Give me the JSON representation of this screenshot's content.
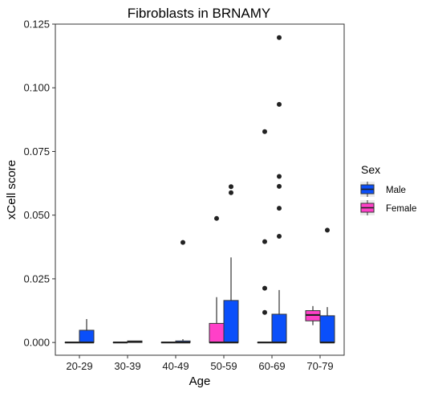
{
  "chart_data": {
    "type": "boxplot",
    "title": "Fibroblasts in BRNAMY",
    "xlabel": "Age",
    "ylabel": "xCell score",
    "ylim": [
      -0.005,
      0.125
    ],
    "y_ticks": [
      "0.000",
      "0.025",
      "0.050",
      "0.075",
      "0.100",
      "0.125"
    ],
    "y_tick_values": [
      0,
      0.025,
      0.05,
      0.075,
      0.1,
      0.125
    ],
    "categories": [
      "20-29",
      "30-39",
      "40-49",
      "50-59",
      "60-69",
      "70-79"
    ],
    "grid": false,
    "legend": {
      "title": "Sex",
      "position": "right",
      "entries": [
        {
          "name": "Male",
          "color": "#0a4ffa"
        },
        {
          "name": "Female",
          "color": "#ff40c8"
        }
      ]
    },
    "series": [
      {
        "name": "Female",
        "color": "#ff40c8",
        "boxes": [
          {
            "category": "20-29",
            "min": 0,
            "q1": 0,
            "median": 0,
            "q3": 0,
            "max": 0,
            "outliers": []
          },
          {
            "category": "30-39",
            "min": 0,
            "q1": 0,
            "median": 0,
            "q3": 0,
            "max": 0,
            "outliers": []
          },
          {
            "category": "40-49",
            "min": 0,
            "q1": 0,
            "median": 0,
            "q3": 0,
            "max": 0,
            "outliers": []
          },
          {
            "category": "50-59",
            "min": 0,
            "q1": 0,
            "median": 0,
            "q3": 0.0075,
            "max": 0.0178,
            "outliers": [
              0.0487
            ]
          },
          {
            "category": "60-69",
            "min": 0,
            "q1": 0,
            "median": 0,
            "q3": 0,
            "max": 0,
            "outliers": [
              0.0118,
              0.0213,
              0.0396,
              0.0828
            ]
          },
          {
            "category": "70-79",
            "min": 0.0068,
            "q1": 0.0085,
            "median": 0.0108,
            "q3": 0.0125,
            "max": 0.0143,
            "outliers": []
          }
        ]
      },
      {
        "name": "Male",
        "color": "#0a4ffa",
        "boxes": [
          {
            "category": "20-29",
            "min": 0,
            "q1": 0,
            "median": 0,
            "q3": 0.0048,
            "max": 0.0092,
            "outliers": []
          },
          {
            "category": "30-39",
            "min": 0,
            "q1": 0,
            "median": 0.0003,
            "q3": 0.0006,
            "max": 0.0006,
            "outliers": []
          },
          {
            "category": "40-49",
            "min": 0,
            "q1": 0,
            "median": 0,
            "q3": 0.0006,
            "max": 0.0013,
            "outliers": [
              0.0393
            ]
          },
          {
            "category": "50-59",
            "min": 0,
            "q1": 0,
            "median": 0,
            "q3": 0.0165,
            "max": 0.0334,
            "outliers": [
              0.0588,
              0.0612
            ]
          },
          {
            "category": "60-69",
            "min": 0,
            "q1": 0,
            "median": 0,
            "q3": 0.0111,
            "max": 0.0206,
            "outliers": [
              0.0417,
              0.0527,
              0.0613,
              0.0652,
              0.0935,
              0.1197
            ]
          },
          {
            "category": "70-79",
            "min": 0,
            "q1": 0,
            "median": 0,
            "q3": 0.0105,
            "max": 0.0139,
            "outliers": [
              0.0441
            ]
          }
        ]
      }
    ]
  }
}
